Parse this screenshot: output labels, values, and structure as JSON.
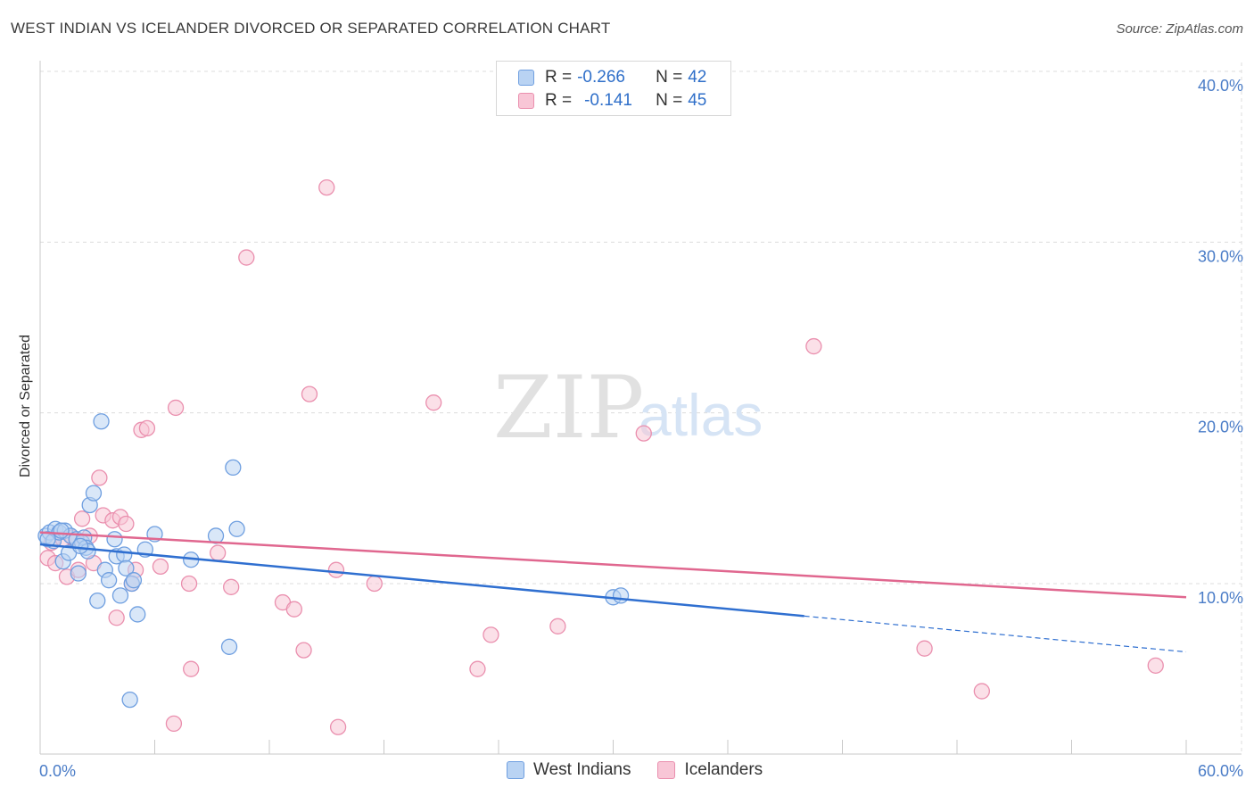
{
  "header": {
    "title": "WEST INDIAN VS ICELANDER DIVORCED OR SEPARATED CORRELATION CHART",
    "source": "Source: ZipAtlas.com"
  },
  "watermark": {
    "zip": "ZIP",
    "atlas": "atlas"
  },
  "legend": {
    "rows": [
      {
        "r_label": "R =",
        "r_value": "-0.266",
        "n_label": "N =",
        "n_value": "42"
      },
      {
        "r_label": "R =",
        "r_value": "-0.141",
        "n_label": "N =",
        "n_value": "45"
      }
    ]
  },
  "bottom_legend": {
    "west_indians": "West Indians",
    "icelanders": "Icelanders"
  },
  "colors": {
    "blue_fill": "#b9d3f3",
    "blue_stroke": "#6f9fe0",
    "blue_line": "#2f6fd0",
    "pink_fill": "#f8c6d6",
    "pink_stroke": "#ea8fae",
    "pink_line": "#e0678f",
    "axis_text": "#4a7cc7",
    "grid": "#dcdcdc"
  },
  "chart_data": {
    "type": "scatter",
    "title": "WEST INDIAN VS ICELANDER DIVORCED OR SEPARATED CORRELATION CHART",
    "xlabel": "",
    "ylabel": "Divorced or Separated",
    "xlim": [
      0,
      60
    ],
    "ylim": [
      0,
      40
    ],
    "x_tick_labels": [
      "0.0%",
      "60.0%"
    ],
    "y_ticks": [
      10,
      20,
      30,
      40
    ],
    "y_tick_labels": [
      "10.0%",
      "20.0%",
      "30.0%",
      "40.0%"
    ],
    "series": [
      {
        "name": "West Indians",
        "r": -0.266,
        "n": 42,
        "trend": {
          "x0": 0,
          "y0": 12.3,
          "x1": 40,
          "y1": 8.1,
          "dashed_to_x": 60,
          "dashed_to_y": 6.0
        },
        "points": [
          [
            0.3,
            12.8
          ],
          [
            0.5,
            13.0
          ],
          [
            0.7,
            12.5
          ],
          [
            0.8,
            13.2
          ],
          [
            1.0,
            13.0
          ],
          [
            1.2,
            11.3
          ],
          [
            1.3,
            13.1
          ],
          [
            1.5,
            11.8
          ],
          [
            1.6,
            12.8
          ],
          [
            1.9,
            12.6
          ],
          [
            2.0,
            10.6
          ],
          [
            2.2,
            12.4
          ],
          [
            2.3,
            12.7
          ],
          [
            2.4,
            12.1
          ],
          [
            2.5,
            11.9
          ],
          [
            2.6,
            14.6
          ],
          [
            2.8,
            15.3
          ],
          [
            3.0,
            9.0
          ],
          [
            3.2,
            19.5
          ],
          [
            3.4,
            10.8
          ],
          [
            3.6,
            10.2
          ],
          [
            3.9,
            12.6
          ],
          [
            4.0,
            11.6
          ],
          [
            4.2,
            9.3
          ],
          [
            4.4,
            11.7
          ],
          [
            4.5,
            10.9
          ],
          [
            4.8,
            10.0
          ],
          [
            4.9,
            10.2
          ],
          [
            5.1,
            8.2
          ],
          [
            5.5,
            12.0
          ],
          [
            6.0,
            12.9
          ],
          [
            4.7,
            3.2
          ],
          [
            7.9,
            11.4
          ],
          [
            9.2,
            12.8
          ],
          [
            9.9,
            6.3
          ],
          [
            10.1,
            16.8
          ],
          [
            10.3,
            13.2
          ],
          [
            30.0,
            9.2
          ],
          [
            30.4,
            9.3
          ],
          [
            0.4,
            12.6
          ],
          [
            1.1,
            13.1
          ],
          [
            2.1,
            12.2
          ]
        ]
      },
      {
        "name": "Icelanders",
        "r": -0.141,
        "n": 45,
        "trend": {
          "x0": 0,
          "y0": 13.0,
          "x1": 60,
          "y1": 9.2
        },
        "points": [
          [
            0.4,
            11.5
          ],
          [
            0.6,
            12.4
          ],
          [
            0.8,
            11.2
          ],
          [
            1.2,
            12.6
          ],
          [
            1.4,
            10.4
          ],
          [
            1.7,
            12.7
          ],
          [
            2.0,
            10.8
          ],
          [
            2.2,
            13.8
          ],
          [
            2.6,
            12.8
          ],
          [
            2.8,
            11.2
          ],
          [
            3.1,
            16.2
          ],
          [
            3.3,
            14.0
          ],
          [
            3.8,
            13.7
          ],
          [
            4.0,
            8.0
          ],
          [
            4.2,
            13.9
          ],
          [
            4.5,
            13.5
          ],
          [
            4.8,
            10.0
          ],
          [
            5.0,
            10.8
          ],
          [
            5.3,
            19.0
          ],
          [
            5.6,
            19.1
          ],
          [
            6.3,
            11.0
          ],
          [
            7.1,
            20.3
          ],
          [
            7.0,
            1.8
          ],
          [
            7.8,
            10.0
          ],
          [
            7.9,
            5.0
          ],
          [
            9.3,
            11.8
          ],
          [
            10.0,
            9.8
          ],
          [
            10.8,
            29.1
          ],
          [
            12.7,
            8.9
          ],
          [
            13.3,
            8.5
          ],
          [
            13.8,
            6.1
          ],
          [
            14.1,
            21.1
          ],
          [
            15.0,
            33.2
          ],
          [
            15.5,
            10.8
          ],
          [
            15.6,
            1.6
          ],
          [
            17.5,
            10.0
          ],
          [
            20.6,
            20.6
          ],
          [
            22.9,
            5.0
          ],
          [
            23.6,
            7.0
          ],
          [
            27.1,
            7.5
          ],
          [
            31.6,
            18.8
          ],
          [
            40.5,
            23.9
          ],
          [
            46.3,
            6.2
          ],
          [
            49.3,
            3.7
          ],
          [
            58.4,
            5.2
          ]
        ]
      }
    ]
  }
}
